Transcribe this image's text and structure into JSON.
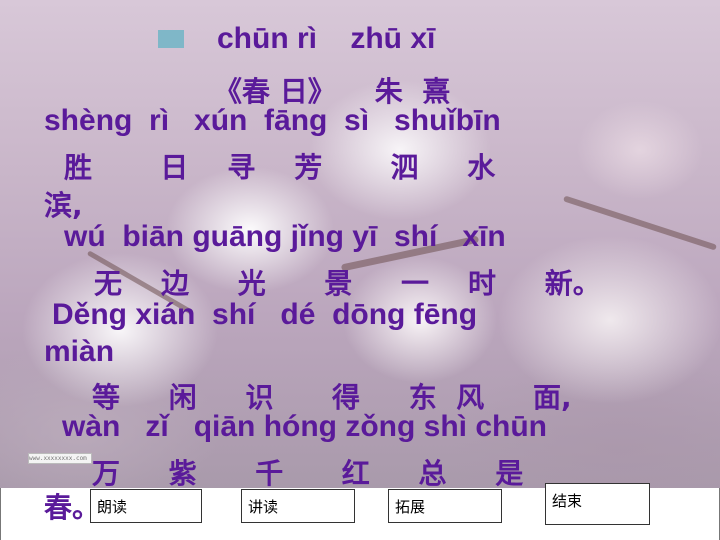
{
  "slide": {
    "title_pinyin": "chūn rì    zhū xī",
    "title_hanzi": "《春 日》    朱  熹",
    "lines": [
      {
        "text": "shèng  rì   xún  fāng  sì   shuǐbīn",
        "kind": "pinyin"
      },
      {
        "text": "胜       日    寻    芳       泗     水",
        "kind": "hanzi"
      },
      {
        "text": "滨,",
        "kind": "hanzi"
      },
      {
        "text": "wú  biān guāng jǐng yī  shí   xīn",
        "kind": "pinyin"
      },
      {
        "text": "无    边     光      景     一    时     新。",
        "kind": "hanzi"
      },
      {
        "text": "Děng xián  shí   dé  dōng fēng",
        "kind": "pinyin"
      },
      {
        "text": "miàn",
        "kind": "pinyin"
      },
      {
        "text": "等     闲     识      得     东  风     面,",
        "kind": "hanzi"
      },
      {
        "text": "wàn   zǐ   qiān hóng zǒng shì chūn",
        "kind": "pinyin"
      },
      {
        "text": "万     紫      千      红     总     是",
        "kind": "hanzi"
      },
      {
        "text": "春。",
        "kind": "hanzi"
      }
    ],
    "watermark_text": "www.xxxxxxxx.com"
  },
  "nav": {
    "read_label": "朗读",
    "explain_label": "讲读",
    "expand_label": "拓展",
    "end_label": "结束"
  },
  "colors": {
    "text": "#5a1a9a",
    "bullet": "#7fb7c8"
  }
}
